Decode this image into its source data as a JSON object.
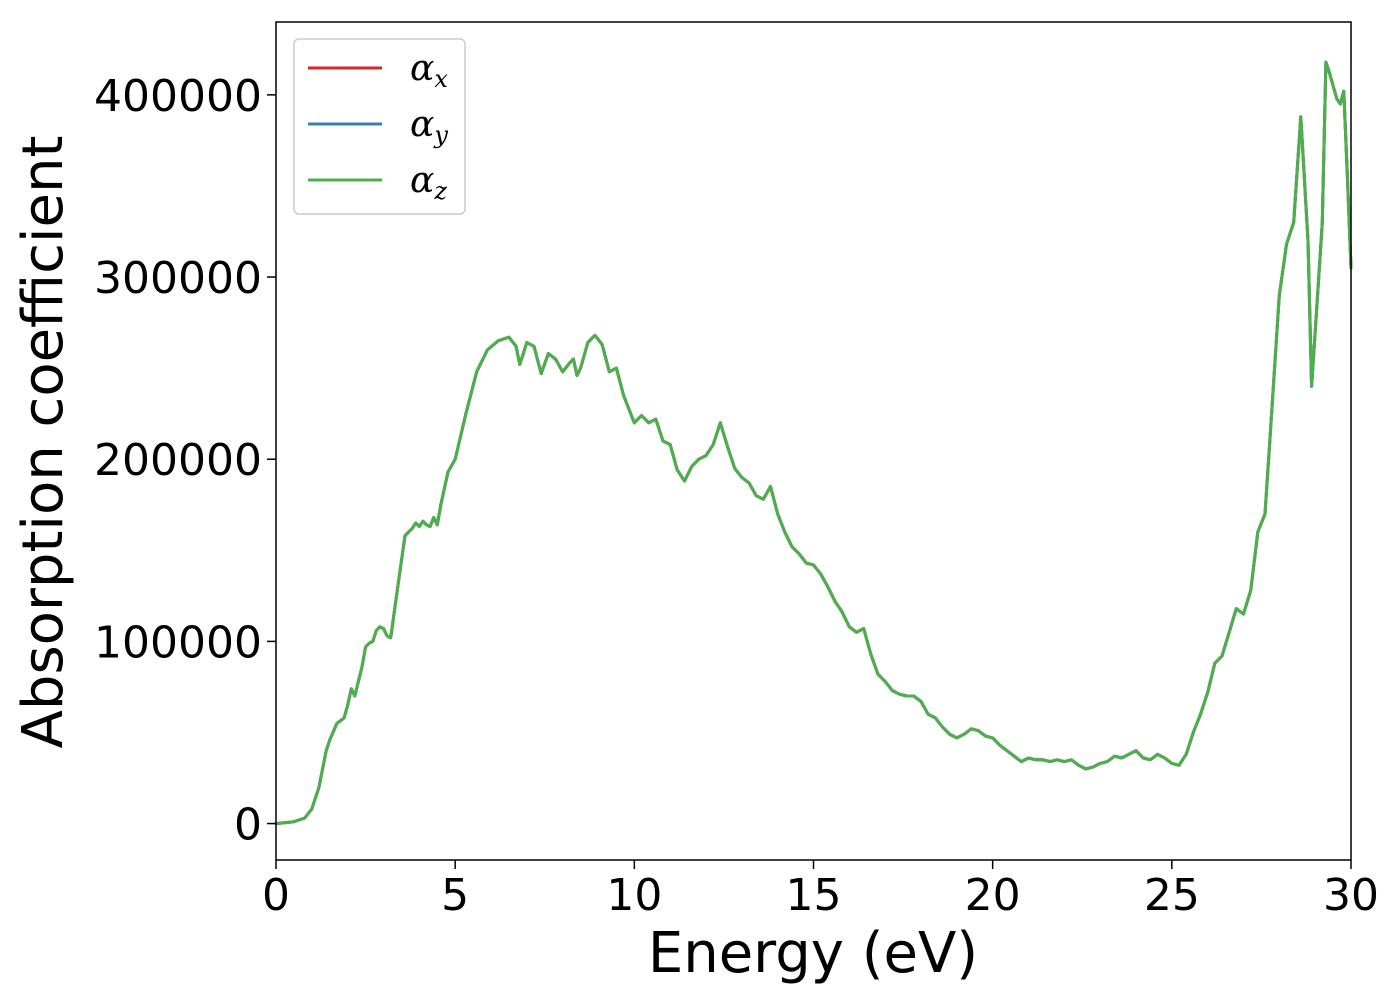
{
  "chart_data": {
    "type": "line",
    "title": "",
    "xlabel": "Energy (eV)",
    "ylabel": "Absorption coefficient",
    "xlim": [
      0,
      30
    ],
    "ylim": [
      -20000,
      440000
    ],
    "x_ticks": [
      0,
      5,
      10,
      15,
      20,
      25,
      30
    ],
    "x_tick_labels": [
      "0",
      "5",
      "10",
      "15",
      "20",
      "25",
      "30"
    ],
    "y_ticks": [
      0,
      100000,
      200000,
      300000,
      400000
    ],
    "y_tick_labels": [
      "0",
      "100000",
      "200000",
      "300000",
      "400000"
    ],
    "grid": false,
    "legend_position": "top-left",
    "x": [
      0,
      0.5,
      0.8,
      1.0,
      1.2,
      1.4,
      1.5,
      1.7,
      1.9,
      2.0,
      2.1,
      2.2,
      2.4,
      2.5,
      2.6,
      2.7,
      2.8,
      2.9,
      3.0,
      3.1,
      3.2,
      3.4,
      3.6,
      3.8,
      3.9,
      4.0,
      4.1,
      4.2,
      4.3,
      4.4,
      4.5,
      4.6,
      4.8,
      5.0,
      5.3,
      5.6,
      5.9,
      6.2,
      6.5,
      6.7,
      6.8,
      6.9,
      7.0,
      7.2,
      7.4,
      7.6,
      7.8,
      8.0,
      8.2,
      8.3,
      8.4,
      8.5,
      8.7,
      8.9,
      9.1,
      9.3,
      9.5,
      9.7,
      10.0,
      10.2,
      10.4,
      10.6,
      10.8,
      11.0,
      11.2,
      11.4,
      11.6,
      11.8,
      12.0,
      12.2,
      12.4,
      12.6,
      12.8,
      13.0,
      13.2,
      13.4,
      13.6,
      13.8,
      14.0,
      14.2,
      14.4,
      14.6,
      14.8,
      15.0,
      15.2,
      15.4,
      15.6,
      15.8,
      16.0,
      16.2,
      16.4,
      16.6,
      16.8,
      17.0,
      17.2,
      17.4,
      17.6,
      17.8,
      18.0,
      18.2,
      18.4,
      18.6,
      18.8,
      19.0,
      19.2,
      19.4,
      19.6,
      19.8,
      20.0,
      20.2,
      20.4,
      20.6,
      20.8,
      21.0,
      21.2,
      21.4,
      21.6,
      21.8,
      22.0,
      22.2,
      22.4,
      22.6,
      22.8,
      23.0,
      23.2,
      23.4,
      23.6,
      23.8,
      24.0,
      24.2,
      24.4,
      24.6,
      24.8,
      25.0,
      25.2,
      25.4,
      25.6,
      25.8,
      26.0,
      26.2,
      26.4,
      26.6,
      26.8,
      27.0,
      27.2,
      27.4,
      27.6,
      27.8,
      28.0,
      28.2,
      28.4,
      28.6,
      28.8,
      28.9,
      29.0,
      29.2,
      29.3,
      29.4,
      29.6,
      29.7,
      29.8,
      29.9,
      30.0
    ],
    "base_y": [
      0,
      1000,
      3000,
      8000,
      20000,
      40000,
      46000,
      55000,
      58000,
      65000,
      74000,
      70000,
      86000,
      97000,
      99000,
      100000,
      106000,
      108000,
      107000,
      103000,
      102000,
      130000,
      158000,
      162000,
      165000,
      163000,
      166000,
      164000,
      163000,
      168000,
      164000,
      175000,
      193000,
      200000,
      225000,
      248000,
      260000,
      265000,
      267000,
      262000,
      252000,
      258000,
      264000,
      262000,
      247000,
      258000,
      255000,
      248000,
      253000,
      255000,
      246000,
      250000,
      264000,
      268000,
      263000,
      248000,
      250000,
      235000,
      220000,
      224000,
      220000,
      222000,
      210000,
      208000,
      194000,
      188000,
      196000,
      200000,
      202000,
      208000,
      220000,
      207000,
      195000,
      190000,
      187000,
      180000,
      178000,
      185000,
      170000,
      160000,
      152000,
      148000,
      143000,
      142000,
      137000,
      130000,
      122000,
      116000,
      108000,
      105000,
      107000,
      93000,
      82000,
      78000,
      73000,
      71000,
      70000,
      70000,
      67000,
      60000,
      58000,
      53000,
      49000,
      47000,
      49000,
      52000,
      51000,
      48000,
      47000,
      43000,
      40000,
      37000,
      34000,
      36000,
      35000,
      35000,
      34000,
      35000,
      34000,
      35000,
      32000,
      30000,
      31000,
      33000,
      34000,
      37000,
      36000,
      38000,
      40000,
      36000,
      35000,
      38000,
      36000,
      33000,
      32000,
      38000,
      50000,
      60000,
      72000,
      88000,
      92000,
      105000,
      118000,
      115000,
      128000,
      160000,
      170000,
      230000,
      290000,
      318000,
      330000,
      388000,
      320000,
      240000,
      270000,
      330000,
      418000,
      412000,
      398000,
      395000,
      402000,
      355000,
      305000
    ],
    "series": [
      {
        "name": "α_x",
        "label_main": "α",
        "label_sub": "x",
        "color": "#d62728",
        "y_offset": 0
      },
      {
        "name": "α_y",
        "label_main": "α",
        "label_sub": "y",
        "color": "#377eb8",
        "y_offset": 0
      },
      {
        "name": "α_z",
        "label_main": "α",
        "label_sub": "z",
        "color": "#4daf4a",
        "y_offset": 0
      }
    ]
  }
}
